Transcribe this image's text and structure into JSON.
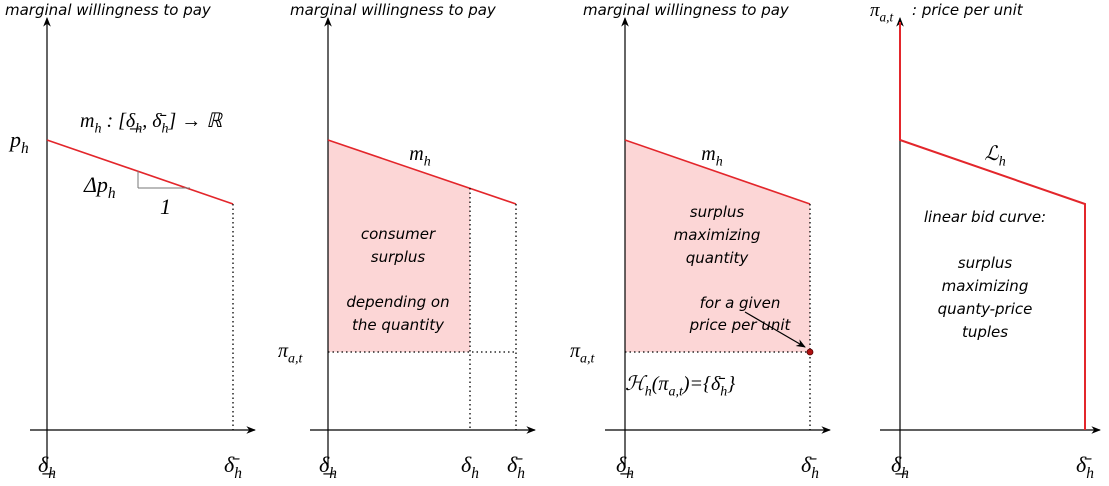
{
  "panels": [
    {
      "title": "marginal willingness to pay",
      "price": [
        "p",
        "h"
      ],
      "curve": [
        "m",
        "h",
        " : [δ̲",
        "h",
        ", δ̄",
        "h",
        "] → ℝ"
      ],
      "slope_rise": [
        "Δp",
        "h"
      ],
      "slope_run": "1",
      "x_labels": [
        [
          "δ̲",
          "h"
        ],
        [
          "δ̄",
          "h"
        ]
      ]
    },
    {
      "title": "marginal willingness to pay",
      "curve": [
        "m",
        "h"
      ],
      "price": [
        "π",
        "a,t"
      ],
      "surplus": [
        "consumer",
        "surplus"
      ],
      "dependence": [
        "depending on",
        "the quantity"
      ],
      "x_labels": [
        [
          "δ̲",
          "h"
        ],
        [
          "δ",
          "h"
        ],
        [
          "δ̄",
          "h"
        ]
      ]
    },
    {
      "title": "marginal willingness to pay",
      "curve": [
        "m",
        "h"
      ],
      "price": [
        "π",
        "a,t"
      ],
      "optimum": [
        "surplus",
        "maximizing",
        "quantity"
      ],
      "annotation": [
        "for a given",
        "price per unit"
      ],
      "result": [
        "ℋ",
        "h",
        "(π",
        "a,t",
        ")={δ̄",
        "h",
        "}"
      ],
      "x_labels": [
        [
          "δ̲",
          "h"
        ],
        [
          "δ̄",
          "h"
        ]
      ]
    },
    {
      "title_math": [
        "π",
        "a,t"
      ],
      "title": " : price per unit",
      "curve": [
        "ℒ",
        "h"
      ],
      "caption": "linear bid curve:",
      "description": [
        "surplus",
        "maximizing",
        "quanty-price",
        "tuples"
      ],
      "x_labels": [
        [
          "δ̲",
          "h"
        ],
        [
          "δ̄",
          "h"
        ]
      ]
    }
  ]
}
